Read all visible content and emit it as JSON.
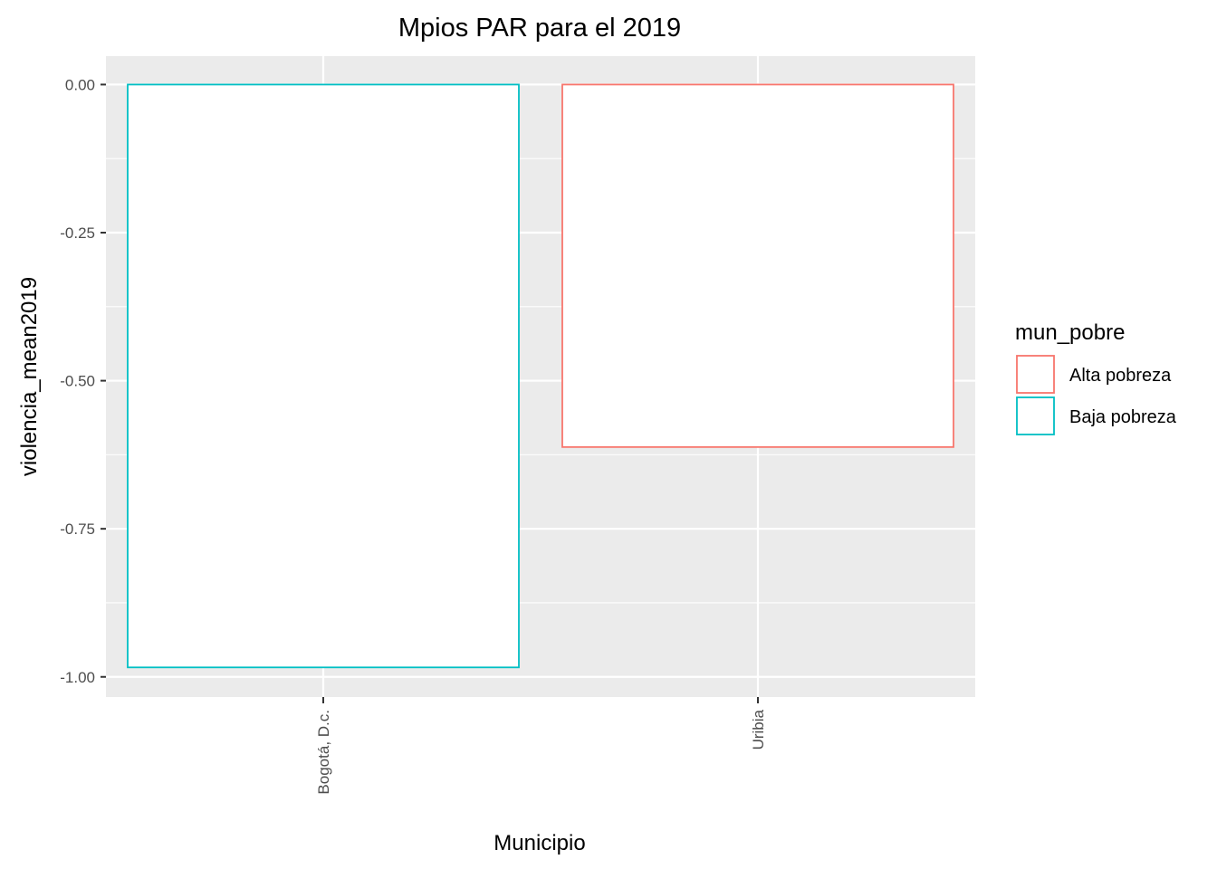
{
  "chart_data": {
    "type": "bar",
    "title": "Mpios PAR para el 2019",
    "xlabel": "Municipio",
    "ylabel": "violencia_mean2019",
    "categories": [
      "Bogotá, D.c.",
      "Uribia"
    ],
    "values": [
      -0.984,
      -0.612
    ],
    "fill_groups": [
      "Baja pobreza",
      "Alta pobreza"
    ],
    "ylim": [
      -1.034,
      0.048
    ],
    "yticks": [
      0.0,
      -0.25,
      -0.5,
      -0.75,
      -1.0
    ],
    "ytick_labels": [
      "0.00",
      "-0.25",
      "-0.50",
      "-0.75",
      "-1.00"
    ],
    "legend": {
      "title": "mun_pobre",
      "position": "right",
      "items": [
        {
          "label": "Alta pobreza",
          "color": "#F8766D"
        },
        {
          "label": "Baja pobreza",
          "color": "#00BFC4"
        }
      ]
    },
    "panel_background": "#EBEBEB",
    "grid_color": "#FFFFFF"
  }
}
